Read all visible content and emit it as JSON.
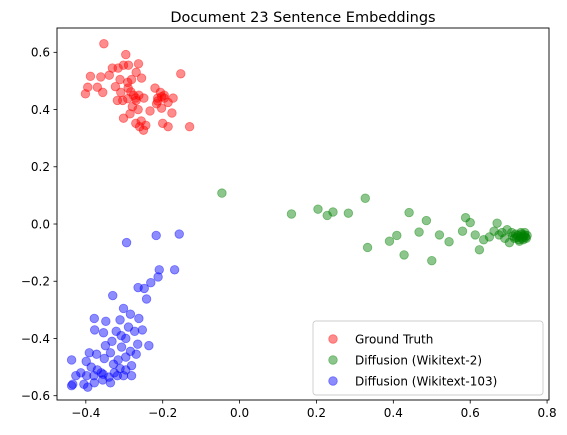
{
  "chart_data": {
    "type": "scatter",
    "title": "Document 23 Sentence Embeddings",
    "xlabel": "",
    "ylabel": "",
    "xlim": [
      -0.475,
      0.805
    ],
    "ylim": [
      -0.615,
      0.685
    ],
    "x_ticks": [
      -0.4,
      -0.2,
      0.0,
      0.2,
      0.4,
      0.6,
      0.8
    ],
    "x_tick_labels": [
      "−0.4",
      "−0.2",
      "0.0",
      "0.2",
      "0.4",
      "0.6",
      "0.8"
    ],
    "y_ticks": [
      -0.6,
      -0.4,
      -0.2,
      0.0,
      0.2,
      0.4,
      0.6
    ],
    "y_tick_labels": [
      "−0.6",
      "−0.4",
      "−0.2",
      "0.0",
      "0.2",
      "0.4",
      "0.6"
    ],
    "grid": false,
    "legend_position": "lower-right",
    "marker_alpha": 0.45,
    "series": [
      {
        "name": "Ground Truth",
        "color": "#ff0000",
        "points": [
          [
            -0.353,
            0.63
          ],
          [
            -0.361,
            0.514
          ],
          [
            -0.388,
            0.516
          ],
          [
            -0.37,
            0.478
          ],
          [
            -0.395,
            0.478
          ],
          [
            -0.401,
            0.455
          ],
          [
            -0.356,
            0.46
          ],
          [
            -0.339,
            0.52
          ],
          [
            -0.331,
            0.545
          ],
          [
            -0.316,
            0.545
          ],
          [
            -0.302,
            0.555
          ],
          [
            -0.289,
            0.555
          ],
          [
            -0.296,
            0.592
          ],
          [
            -0.269,
            0.53
          ],
          [
            -0.263,
            0.56
          ],
          [
            -0.255,
            0.51
          ],
          [
            -0.281,
            0.505
          ],
          [
            -0.291,
            0.495
          ],
          [
            -0.311,
            0.505
          ],
          [
            -0.323,
            0.48
          ],
          [
            -0.309,
            0.46
          ],
          [
            -0.29,
            0.475
          ],
          [
            -0.283,
            0.462
          ],
          [
            -0.276,
            0.45
          ],
          [
            -0.27,
            0.44
          ],
          [
            -0.262,
            0.45
          ],
          [
            -0.249,
            0.44
          ],
          [
            -0.269,
            0.432
          ],
          [
            -0.291,
            0.438
          ],
          [
            -0.304,
            0.432
          ],
          [
            -0.318,
            0.432
          ],
          [
            -0.279,
            0.41
          ],
          [
            -0.264,
            0.4
          ],
          [
            -0.285,
            0.385
          ],
          [
            -0.302,
            0.37
          ],
          [
            -0.27,
            0.352
          ],
          [
            -0.256,
            0.36
          ],
          [
            -0.244,
            0.345
          ],
          [
            -0.26,
            0.34
          ],
          [
            -0.25,
            0.328
          ],
          [
            -0.22,
            0.475
          ],
          [
            -0.206,
            0.46
          ],
          [
            -0.196,
            0.45
          ],
          [
            -0.203,
            0.445
          ],
          [
            -0.213,
            0.44
          ],
          [
            -0.196,
            0.44
          ],
          [
            -0.186,
            0.425
          ],
          [
            -0.173,
            0.44
          ],
          [
            -0.216,
            0.42
          ],
          [
            -0.203,
            0.405
          ],
          [
            -0.233,
            0.395
          ],
          [
            -0.176,
            0.388
          ],
          [
            -0.2,
            0.352
          ],
          [
            -0.186,
            0.34
          ],
          [
            -0.153,
            0.525
          ],
          [
            -0.13,
            0.34
          ],
          [
            -0.213,
            0.43
          ]
        ]
      },
      {
        "name": "Diffusion (Wikitext-2)",
        "color": "#008000",
        "points": [
          [
            -0.046,
            0.108
          ],
          [
            0.135,
            0.035
          ],
          [
            0.204,
            0.052
          ],
          [
            0.228,
            0.03
          ],
          [
            0.243,
            0.042
          ],
          [
            0.283,
            0.038
          ],
          [
            0.327,
            0.09
          ],
          [
            0.333,
            -0.082
          ],
          [
            0.39,
            -0.06
          ],
          [
            0.409,
            -0.04
          ],
          [
            0.428,
            -0.108
          ],
          [
            0.441,
            0.04
          ],
          [
            0.467,
            -0.028
          ],
          [
            0.486,
            0.012
          ],
          [
            0.5,
            -0.128
          ],
          [
            0.52,
            -0.038
          ],
          [
            0.545,
            -0.062
          ],
          [
            0.58,
            -0.025
          ],
          [
            0.588,
            0.022
          ],
          [
            0.6,
            0.005
          ],
          [
            0.613,
            -0.038
          ],
          [
            0.624,
            -0.09
          ],
          [
            0.635,
            -0.055
          ],
          [
            0.65,
            -0.045
          ],
          [
            0.662,
            -0.025
          ],
          [
            0.67,
            0.003
          ],
          [
            0.675,
            -0.038
          ],
          [
            0.683,
            -0.03
          ],
          [
            0.69,
            -0.05
          ],
          [
            0.696,
            -0.02
          ],
          [
            0.702,
            -0.065
          ],
          [
            0.708,
            -0.03
          ],
          [
            0.711,
            -0.042
          ],
          [
            0.715,
            -0.05
          ],
          [
            0.718,
            -0.035
          ],
          [
            0.721,
            -0.048
          ],
          [
            0.724,
            -0.04
          ],
          [
            0.727,
            -0.055
          ],
          [
            0.73,
            -0.045
          ],
          [
            0.733,
            -0.035
          ],
          [
            0.736,
            -0.05
          ],
          [
            0.739,
            -0.042
          ],
          [
            0.742,
            -0.038
          ],
          [
            0.744,
            -0.046
          ],
          [
            0.746,
            -0.05
          ],
          [
            0.748,
            -0.04
          ],
          [
            0.732,
            -0.03
          ],
          [
            0.728,
            -0.06
          ],
          [
            0.738,
            -0.055
          ],
          [
            0.742,
            -0.03
          ]
        ]
      },
      {
        "name": "Diffusion (Wikitext-103)",
        "color": "#0000ff",
        "points": [
          [
            -0.294,
            -0.065
          ],
          [
            -0.217,
            -0.04
          ],
          [
            -0.157,
            -0.035
          ],
          [
            -0.169,
            -0.16
          ],
          [
            -0.209,
            -0.16
          ],
          [
            -0.212,
            -0.185
          ],
          [
            -0.231,
            -0.205
          ],
          [
            -0.248,
            -0.225
          ],
          [
            -0.264,
            -0.222
          ],
          [
            -0.242,
            -0.262
          ],
          [
            -0.33,
            -0.25
          ],
          [
            -0.302,
            -0.295
          ],
          [
            -0.378,
            -0.33
          ],
          [
            -0.348,
            -0.34
          ],
          [
            -0.311,
            -0.335
          ],
          [
            -0.284,
            -0.315
          ],
          [
            -0.262,
            -0.33
          ],
          [
            -0.377,
            -0.37
          ],
          [
            -0.354,
            -0.38
          ],
          [
            -0.321,
            -0.375
          ],
          [
            -0.308,
            -0.39
          ],
          [
            -0.296,
            -0.4
          ],
          [
            -0.273,
            -0.375
          ],
          [
            -0.253,
            -0.37
          ],
          [
            -0.289,
            -0.36
          ],
          [
            -0.332,
            -0.41
          ],
          [
            -0.349,
            -0.425
          ],
          [
            -0.336,
            -0.45
          ],
          [
            -0.307,
            -0.43
          ],
          [
            -0.284,
            -0.445
          ],
          [
            -0.265,
            -0.42
          ],
          [
            -0.269,
            -0.455
          ],
          [
            -0.296,
            -0.465
          ],
          [
            -0.316,
            -0.475
          ],
          [
            -0.328,
            -0.49
          ],
          [
            -0.352,
            -0.47
          ],
          [
            -0.372,
            -0.455
          ],
          [
            -0.391,
            -0.45
          ],
          [
            -0.399,
            -0.48
          ],
          [
            -0.386,
            -0.5
          ],
          [
            -0.37,
            -0.51
          ],
          [
            -0.355,
            -0.525
          ],
          [
            -0.34,
            -0.535
          ],
          [
            -0.326,
            -0.52
          ],
          [
            -0.311,
            -0.505
          ],
          [
            -0.296,
            -0.51
          ],
          [
            -0.281,
            -0.495
          ],
          [
            -0.281,
            -0.53
          ],
          [
            -0.302,
            -0.53
          ],
          [
            -0.318,
            -0.53
          ],
          [
            -0.336,
            -0.555
          ],
          [
            -0.356,
            -0.545
          ],
          [
            -0.378,
            -0.555
          ],
          [
            -0.395,
            -0.57
          ],
          [
            -0.405,
            -0.56
          ],
          [
            -0.398,
            -0.53
          ],
          [
            -0.413,
            -0.52
          ],
          [
            -0.426,
            -0.53
          ],
          [
            -0.434,
            -0.56
          ],
          [
            -0.437,
            -0.565
          ],
          [
            -0.437,
            -0.475
          ],
          [
            -0.236,
            -0.425
          ],
          [
            -0.379,
            -0.53
          ],
          [
            -0.36,
            -0.52
          ]
        ]
      }
    ]
  }
}
